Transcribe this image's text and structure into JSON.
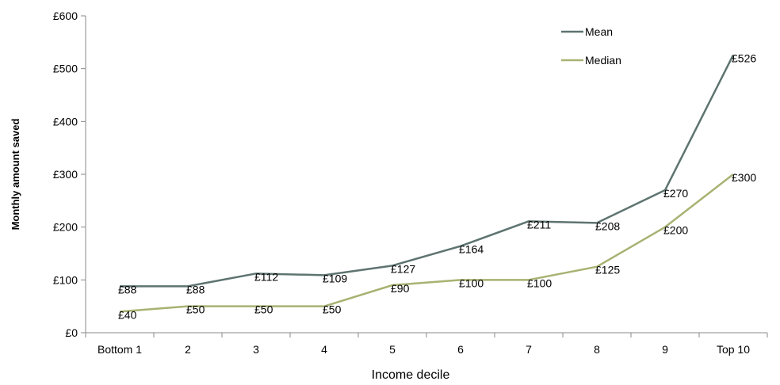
{
  "chart_data": {
    "type": "line",
    "title": "",
    "xlabel": "Income decile",
    "ylabel": "Monthly amount saved",
    "categories": [
      "Bottom 1",
      "2",
      "3",
      "4",
      "5",
      "6",
      "7",
      "8",
      "9",
      "Top 10"
    ],
    "yticks": [
      "£0",
      "£100",
      "£200",
      "£300",
      "£400",
      "£500",
      "£600"
    ],
    "ylim": [
      0,
      600
    ],
    "grid": false,
    "legend_position": "top-right",
    "series": [
      {
        "name": "Mean",
        "color": "#5e7470",
        "values": [
          88,
          88,
          112,
          109,
          127,
          164,
          211,
          208,
          270,
          526
        ],
        "labels": [
          "£88",
          "£88",
          "£112",
          "£109",
          "£127",
          "£164",
          "£211",
          "£208",
          "£270",
          "£526"
        ]
      },
      {
        "name": "Median",
        "color": "#a8b272",
        "values": [
          40,
          50,
          50,
          50,
          90,
          100,
          100,
          125,
          200,
          300
        ],
        "labels": [
          "£40",
          "£50",
          "£50",
          "£50",
          "£90",
          "£100",
          "£100",
          "£125",
          "£200",
          "£300"
        ]
      }
    ]
  }
}
